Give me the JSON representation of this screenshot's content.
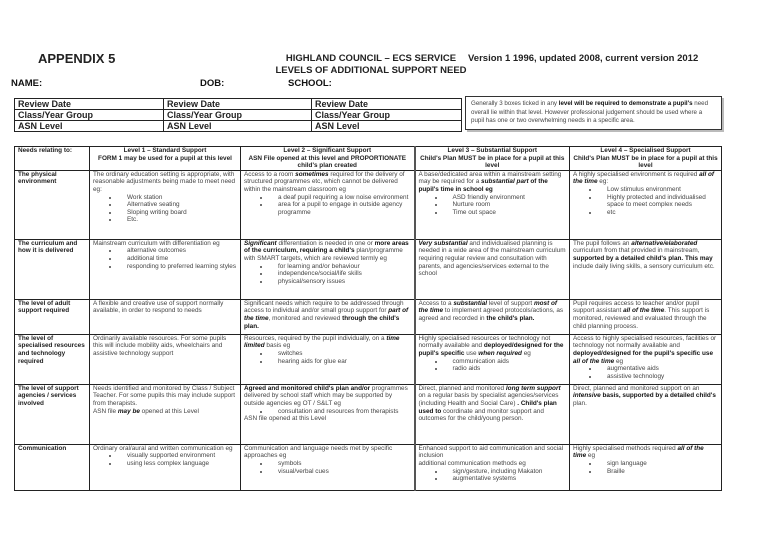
{
  "header": {
    "appendix": "APPENDIX 5",
    "council_line1": "HIGHLAND COUNCIL – ECS SERVICE",
    "council_line2": "LEVELS OF ADDITIONAL SUPPORT NEED",
    "version": "Version 1 1996, updated 2008, current version 2012",
    "name_label": "NAME:",
    "dob_label": "DOB:",
    "school_label": "SCHOOL:"
  },
  "review_table": {
    "rows": [
      [
        "Review Date",
        "Review Date",
        "Review Date"
      ],
      [
        "Class/Year Group",
        "Class/Year Group",
        "Class/Year Group"
      ],
      [
        "ASN Level",
        "ASN Level",
        "ASN Level"
      ]
    ]
  },
  "note": [
    {
      "t": "Generally 3 boxes ticked in any "
    },
    {
      "t": "level will be required to demonstrate a pupil's",
      "s": "b"
    },
    {
      "t": " need overall lie within that level. However professional judgement should be used where a pupil has one or two overwhelming needs in a specific area."
    }
  ],
  "main_table": {
    "headers": [
      [
        "Needs relating to:"
      ],
      [
        "Level 1 – Standard Support",
        "FORM 1 may be used for a pupil at this level"
      ],
      [
        "Level 2 – Significant Support",
        "ASN File opened at this level and PROPORTIONATE child's plan created"
      ],
      [
        "Level 3 – Substantial Support",
        "Child's Plan MUST be in place for a pupil at this level"
      ],
      [
        "Level 4 – Specialised Support",
        "Child's Plan MUST be in place for a pupil at this level"
      ]
    ],
    "rows": [
      {
        "need": "The physical environment",
        "cells": [
          [
            {
              "p": [
                {
                  "t": "The ordinary education setting is appropriate, with reasonable adjustments being made to meet need eg:"
                }
              ]
            },
            {
              "ul": [
                "Work station",
                "Alternative seating",
                "Sloping writing board",
                "Etc."
              ]
            }
          ],
          [
            {
              "p": [
                {
                  "t": "Access to a room "
                },
                {
                  "t": "sometimes",
                  "s": "bi"
                },
                {
                  "t": " required for the delivery of structured programmes etc, which cannot be delivered within the mainstream classroom eg"
                }
              ]
            },
            {
              "ul": [
                "a deaf pupil requiring a low noise environment",
                "area for a pupil to engage in outside agency programme"
              ]
            }
          ],
          [
            {
              "p": [
                {
                  "t": "A base/dedicated area within a mainstream setting may be required for a "
                },
                {
                  "t": "substantial part",
                  "s": "bi"
                },
                {
                  "t": " of the pupil's time in school eg",
                  "s": "b"
                }
              ]
            },
            {
              "ul": [
                "ASD friendly environment",
                "Nurture room",
                "Time out space"
              ]
            }
          ],
          [
            {
              "p": [
                {
                  "t": "A highly specialised environment is required "
                },
                {
                  "t": "all of the time",
                  "s": "bi"
                },
                {
                  "t": " eg:"
                }
              ]
            },
            {
              "ul": [
                "Low stimulus environment",
                "Highly protected and individualised space to meet complex needs",
                "etc"
              ]
            }
          ]
        ]
      },
      {
        "need": "The curriculum and how it is delivered",
        "cells": [
          [
            {
              "p": [
                {
                  "t": "Mainstream curriculum with differentiation eg"
                }
              ]
            },
            {
              "ul": [
                "alternative outcomes",
                "additional time",
                "responding to preferred learning styles"
              ]
            }
          ],
          [
            {
              "p": [
                {
                  "t": "Significant",
                  "s": "bi"
                },
                {
                  "t": " differentiation is needed in one or "
                },
                {
                  "t": "more areas of the curriculum, requiring a child's",
                  "s": "b"
                },
                {
                  "t": " plan/programme with SMART targets, which are reviewed termly eg"
                }
              ]
            },
            {
              "ul": [
                "for learning and/or behaviour",
                "independence/social/life skills",
                "physical/sensory issues"
              ]
            }
          ],
          [
            {
              "p": [
                {
                  "t": "Very substantial",
                  "s": "bi"
                },
                {
                  "t": " and individualised planning is needed in a wide area of the mainstream curriculum requiring regular review and consultation with parents, and agencies/services external to the school"
                }
              ]
            }
          ],
          [
            {
              "p": [
                {
                  "t": "The pupil follows an "
                },
                {
                  "t": "alternative/elaborated",
                  "s": "bi"
                },
                {
                  "t": " curriculum from that provided in mainstream, "
                },
                {
                  "t": "supported by a detailed child's plan. This may",
                  "s": "b"
                },
                {
                  "t": " include daily living skills, a sensory curriculum etc."
                }
              ]
            }
          ]
        ]
      },
      {
        "need": "The level of adult support required",
        "cells": [
          [
            {
              "p": [
                {
                  "t": "A flexible and creative use of support normally available, in order to respond to needs"
                }
              ]
            }
          ],
          [
            {
              "p": [
                {
                  "t": "Significant needs which require to be addressed through access to individual and/or small group support for "
                },
                {
                  "t": "part of the time",
                  "s": "bi"
                },
                {
                  "t": ", monitored and reviewed "
                },
                {
                  "t": "through the child's plan.",
                  "s": "b"
                }
              ]
            }
          ],
          [
            {
              "p": [
                {
                  "t": "Access to a "
                },
                {
                  "t": "substantial",
                  "s": "bi"
                },
                {
                  "t": " level of support "
                },
                {
                  "t": "most of the time",
                  "s": "bi"
                },
                {
                  "t": " to implement agreed protocols/actions, as agreed and recorded in "
                },
                {
                  "t": "the child's plan.",
                  "s": "b"
                }
              ]
            }
          ],
          [
            {
              "p": [
                {
                  "t": "Pupil requires access to teacher and/or pupil support assistant "
                },
                {
                  "t": "all of the time",
                  "s": "bi"
                },
                {
                  "t": ". This support is monitored, reviewed and evaluated through the child planning process."
                }
              ]
            }
          ]
        ]
      },
      {
        "need": "The level of specialised resources and technology required",
        "cells": [
          [
            {
              "p": [
                {
                  "t": "Ordinarily available resources. For some pupils this will include mobility aids, wheelchairs and assistive technology support"
                }
              ]
            }
          ],
          [
            {
              "p": [
                {
                  "t": "Resources, required by the pupil individually, on a "
                },
                {
                  "t": "time limited",
                  "s": "bi"
                },
                {
                  "t": " basis eg"
                }
              ]
            },
            {
              "ul": [
                "switches",
                "hearing aids for glue ear"
              ]
            }
          ],
          [
            {
              "p": [
                {
                  "t": "Highly specialised resources or technology not normally available and "
                },
                {
                  "t": "deployed/designed for the pupil's specific",
                  "s": "b"
                },
                {
                  "t": " use "
                },
                {
                  "t": "when required",
                  "s": "bi"
                },
                {
                  "t": " eg"
                }
              ]
            },
            {
              "ul": [
                "communication aids",
                "radio aids"
              ]
            }
          ],
          [
            {
              "p": [
                {
                  "t": "Access to highly specialised resources, facilities or technology not normally available and "
                },
                {
                  "t": "deployed/designed for the pupil's specific use",
                  "s": "b"
                },
                {
                  "t": " "
                },
                {
                  "t": "all of the time",
                  "s": "bi"
                },
                {
                  "t": " eg"
                }
              ]
            },
            {
              "ul": [
                "augmentative aids",
                "assistive technology"
              ]
            }
          ]
        ]
      },
      {
        "need": "The level of support agencies / services involved",
        "cells": [
          [
            {
              "p": [
                {
                  "t": "Needs identified and monitored by Class / Subject Teacher. For some pupils this may include support from therapists."
                }
              ]
            },
            {
              "p": [
                {
                  "t": "ASN file "
                },
                {
                  "t": "may be",
                  "s": "bi"
                },
                {
                  "t": " opened at this Level"
                }
              ]
            }
          ],
          [
            {
              "p": [
                {
                  "t": "Agreed and monitored child's plan and/or",
                  "s": "b"
                },
                {
                  "t": " programmes delivered by school staff which may be supported by outside agencies eg OT / S&LT eg"
                }
              ]
            },
            {
              "ul": [
                "consultation and resources from therapists"
              ]
            },
            {
              "p": [
                {
                  "t": "ASN file opened at this Level"
                }
              ]
            }
          ],
          [
            {
              "p": [
                {
                  "t": "Direct, planned and monitored "
                },
                {
                  "t": "long term support",
                  "s": "bi"
                },
                {
                  "t": " on a regular basis by specialist agencies/services (including Health and Social Care) "
                },
                {
                  "t": ". Child's plan used to",
                  "s": "b"
                },
                {
                  "t": " coordinate and monitor support and outcomes for the child/young person."
                }
              ]
            }
          ],
          [
            {
              "p": [
                {
                  "t": "Direct, planned and monitored support on an "
                },
                {
                  "t": "intensive",
                  "s": "bi"
                },
                {
                  "t": " "
                },
                {
                  "t": "basis, supported by a detailed child's",
                  "s": "b"
                },
                {
                  "t": " plan."
                }
              ]
            }
          ]
        ]
      },
      {
        "need": "Communication",
        "cells": [
          [
            {
              "p": [
                {
                  "t": "Ordinary oral/aural and written communication eg"
                }
              ]
            },
            {
              "ul": [
                "visually supported environment",
                "using less complex language"
              ]
            }
          ],
          [
            {
              "p": [
                {
                  "t": "Communication and language needs met by specific approaches eg"
                }
              ]
            },
            {
              "ul": [
                "symbols",
                "visual/verbal cues"
              ]
            }
          ],
          [
            {
              "p": [
                {
                  "t": "Enhanced support to aid communication and social inclusion"
                }
              ]
            },
            {
              "p": [
                {
                  "t": "additional communication methods eg"
                }
              ]
            },
            {
              "ul": [
                "sign/gesture, including Makaton",
                "augmentative systems"
              ]
            }
          ],
          [
            {
              "p": [
                {
                  "t": "Highly specialised methods required "
                },
                {
                  "t": "all of the time",
                  "s": "bi"
                },
                {
                  "t": " eg"
                }
              ]
            },
            {
              "ul": [
                "sign language",
                "Braille"
              ]
            }
          ]
        ]
      }
    ]
  }
}
